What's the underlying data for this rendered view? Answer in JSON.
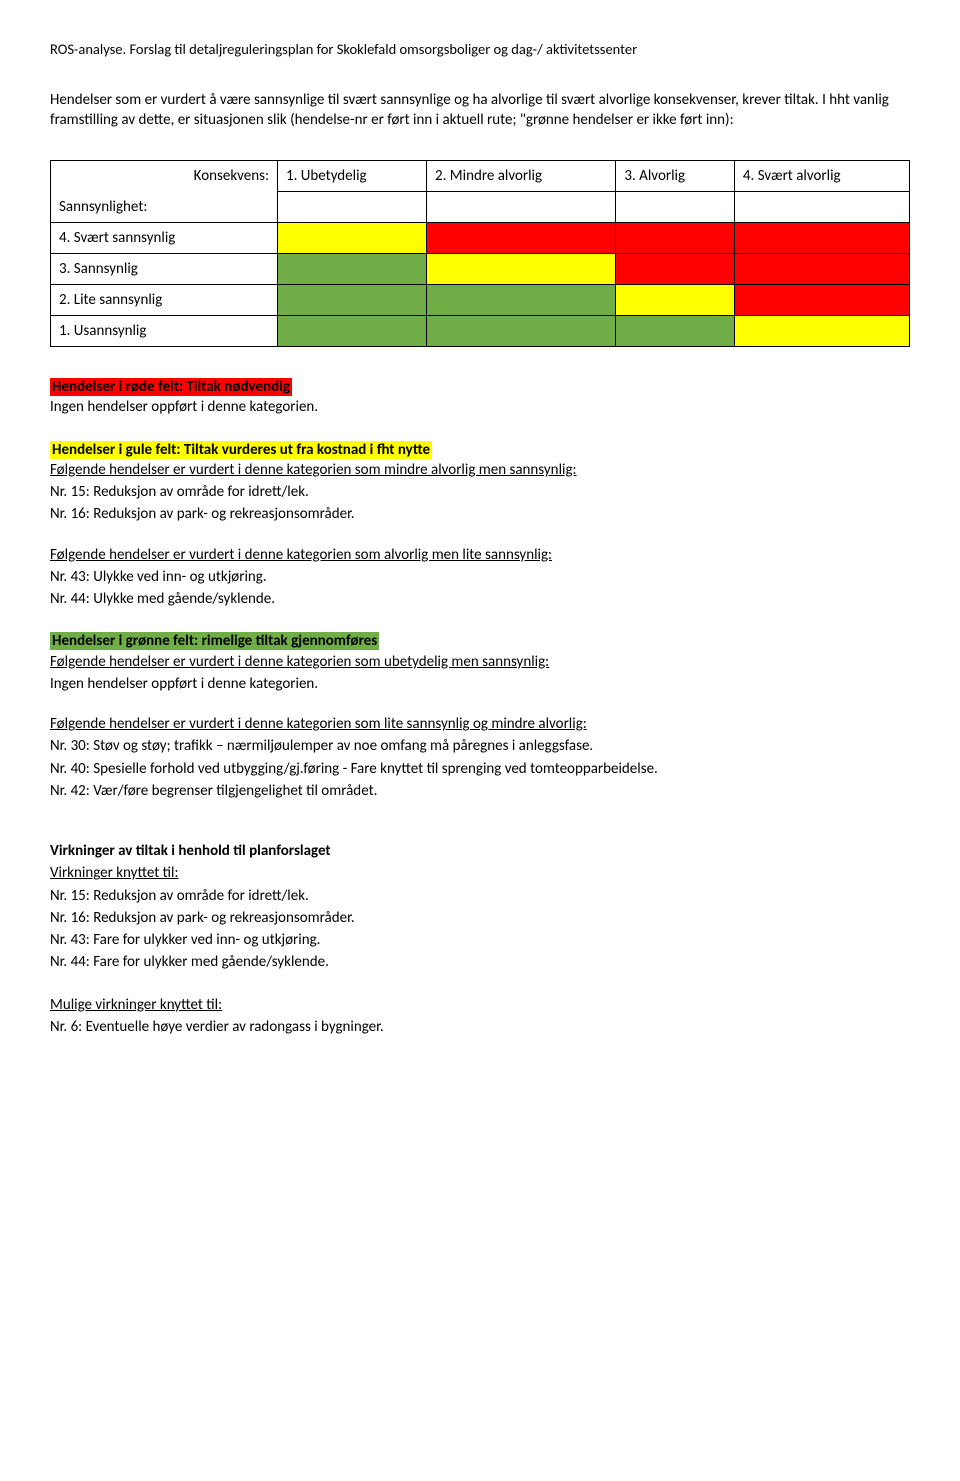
{
  "header": "ROS-analyse. Forslag til detaljreguleringsplan for Skoklefald omsorgsboliger og dag-/ aktivitetssenter",
  "intro": "Hendelser som er vurdert å være sannsynlige til svært sannsynlige og ha alvorlige til svært alvorlige konsekvenser, krever tiltak. I hht vanlig framstilling av dette, er situasjonen slik (hendelse-nr er ført inn i aktuell rute; \"grønne hendelser er ikke ført inn):",
  "matrix": {
    "konsekvens_label": "Konsekvens:",
    "sannsynlighet_label": "Sannsynlighet:",
    "cols": [
      "1. Ubetydelig",
      "2. Mindre alvorlig",
      "3. Alvorlig",
      "4. Svært alvorlig"
    ],
    "rows": [
      {
        "label": "4. Svært sannsynlig",
        "colors": [
          "c-yellow",
          "c-red",
          "c-red",
          "c-red"
        ]
      },
      {
        "label": "3. Sannsynlig",
        "colors": [
          "c-green",
          "c-yellow",
          "c-red",
          "c-red"
        ]
      },
      {
        "label": "2. Lite sannsynlig",
        "colors": [
          "c-green",
          "c-green",
          "c-yellow",
          "c-red"
        ]
      },
      {
        "label": "1. Usannsynlig",
        "colors": [
          "c-green",
          "c-green",
          "c-green",
          "c-yellow"
        ]
      }
    ]
  },
  "red_section": {
    "title": "Hendelser i røde felt: Tiltak nødvendig",
    "lines": [
      "Ingen hendelser oppført i denne kategorien."
    ]
  },
  "yellow_section": {
    "title": "Hendelser i gule felt: Tiltak vurderes ut fra kostnad i fht nytte",
    "sub1_under": "Følgende hendelser er vurdert i denne kategorien som mindre alvorlig men sannsynlig:",
    "sub1_lines": [
      "Nr. 15: Reduksjon av område for idrett/lek.",
      "Nr. 16: Reduksjon av park- og rekreasjonsområder."
    ],
    "sub2_under": "Følgende hendelser er vurdert i denne kategorien som alvorlig men lite sannsynlig:",
    "sub2_lines": [
      "Nr. 43: Ulykke ved inn- og utkjøring.",
      "Nr. 44: Ulykke med gående/syklende."
    ]
  },
  "green_section": {
    "title": "Hendelser i grønne felt: rimelige tiltak gjennomføres",
    "sub1_under": "Følgende hendelser er vurdert i denne kategorien som ubetydelig men sannsynlig:",
    "sub1_lines": [
      "Ingen hendelser oppført i denne kategorien."
    ],
    "sub2_under": "Følgende hendelser er vurdert i denne kategorien som lite sannsynlig og mindre alvorlig:",
    "sub2_lines": [
      "Nr. 30: Støv og støy; trafikk – nærmiljøulemper av noe omfang må påregnes i anleggsfase.",
      "Nr. 40: Spesielle forhold ved utbygging/gj.føring - Fare knyttet til sprenging ved tomteopparbeidelse.",
      "Nr. 42: Vær/føre begrenser tilgjengelighet til området."
    ]
  },
  "virkninger": {
    "title": "Virkninger av tiltak i henhold til planforslaget",
    "sub_under": "Virkninger knyttet til:",
    "lines": [
      "Nr. 15: Reduksjon av område for idrett/lek.",
      "Nr. 16: Reduksjon av park- og rekreasjonsområder.",
      "Nr. 43: Fare for ulykker ved inn- og utkjøring.",
      "Nr. 44: Fare for ulykker med gående/syklende."
    ]
  },
  "mulige": {
    "sub_under": "Mulige virkninger knyttet til:",
    "lines": [
      "Nr. 6: Eventuelle høye verdier av radongass i bygninger."
    ]
  }
}
